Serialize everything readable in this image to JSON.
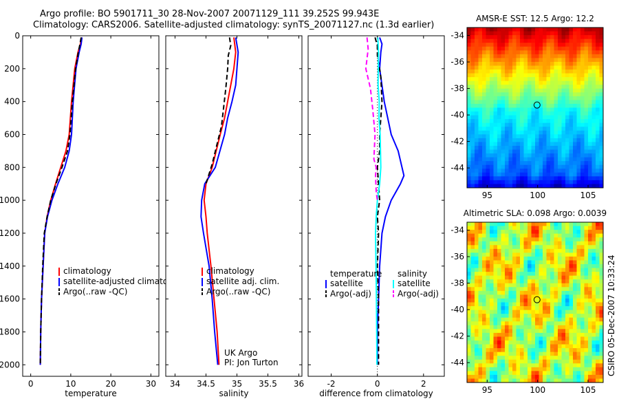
{
  "header": {
    "line1": "Argo profile: BO 5901711_30 28-Nov-2007 20071129_111 39.252S 99.943E",
    "line2": "Climatology: CARS2006. Satellite-adjusted climatology: synTS_20071127.nc (1.3d earlier)"
  },
  "side_note": "CSIRO 05-Dec-2007 10:33:24",
  "colors": {
    "climatology": "#ff0000",
    "satellite": "#0000ff",
    "argo": "#000000",
    "sal_satellite": "#00ffff",
    "sal_argo": "#ff00ff"
  },
  "chart_data": [
    {
      "type": "line",
      "id": "temperature",
      "xlabel": "temperature",
      "ylabel": "",
      "xlim": [
        -2,
        32
      ],
      "ylim": [
        2070,
        0
      ],
      "xticks": [
        0,
        10,
        20,
        30
      ],
      "yticks": [
        0,
        200,
        400,
        600,
        800,
        1000,
        1200,
        1400,
        1600,
        1800,
        2000
      ],
      "legend": [
        "climatology",
        "satellite-adjusted climatology",
        "Argo(..raw -QC)"
      ],
      "series": [
        {
          "name": "climatology",
          "color": "#ff0000",
          "style": "solid",
          "x": [
            12.7,
            12.4,
            11.8,
            11.0,
            10.2,
            9.6,
            8.8,
            7.5,
            6.2,
            5.0,
            4.1,
            3.5,
            3.1,
            2.7,
            2.5,
            2.4
          ],
          "y": [
            10,
            50,
            100,
            200,
            400,
            600,
            700,
            800,
            900,
            1000,
            1100,
            1200,
            1400,
            1600,
            1800,
            2000
          ]
        },
        {
          "name": "satellite-adjusted climatology",
          "color": "#0000ff",
          "style": "solid",
          "x": [
            12.8,
            12.6,
            12.1,
            11.3,
            10.6,
            10.2,
            9.6,
            8.5,
            6.8,
            5.3,
            4.2,
            3.5,
            3.1,
            2.7,
            2.5,
            2.4
          ],
          "y": [
            10,
            50,
            100,
            200,
            400,
            600,
            700,
            800,
            900,
            1000,
            1100,
            1200,
            1400,
            1600,
            1800,
            2000
          ]
        },
        {
          "name": "Argo(..raw -QC)",
          "color": "#000000",
          "style": "dashed",
          "x": [
            12.6,
            12.3,
            11.9,
            11.2,
            10.4,
            9.8,
            9.2,
            7.8,
            6.3,
            5.0,
            4.1,
            3.4,
            3.0,
            2.7,
            2.5,
            2.4
          ],
          "y": [
            10,
            50,
            100,
            200,
            400,
            600,
            700,
            800,
            900,
            1000,
            1100,
            1200,
            1400,
            1600,
            1800,
            2000
          ]
        }
      ]
    },
    {
      "type": "line",
      "id": "salinity",
      "xlabel": "salinity",
      "ylabel": "",
      "xlim": [
        33.85,
        36.05
      ],
      "ylim": [
        2070,
        0
      ],
      "xticks": [
        34,
        34.5,
        35,
        35.5,
        36
      ],
      "yticks": [
        0,
        200,
        400,
        600,
        800,
        1000,
        1200,
        1400,
        1600,
        1800,
        2000
      ],
      "legend": [
        "climatology",
        "satellite adj. clim.",
        "Argo(..raw -QC)"
      ],
      "annotation": [
        "UK Argo",
        "PI: Jon Turton"
      ],
      "series": [
        {
          "name": "climatology",
          "color": "#ff0000",
          "style": "solid",
          "x": [
            34.95,
            34.98,
            34.95,
            34.9,
            34.85,
            34.8,
            34.73,
            34.6,
            34.5,
            34.47,
            34.5,
            34.52,
            34.58,
            34.63,
            34.68,
            34.71
          ],
          "y": [
            10,
            100,
            200,
            300,
            400,
            500,
            600,
            800,
            900,
            1000,
            1100,
            1200,
            1400,
            1600,
            1800,
            2000
          ]
        },
        {
          "name": "satellite adj. clim.",
          "color": "#0000ff",
          "style": "solid",
          "x": [
            34.98,
            35.02,
            35.0,
            34.98,
            34.92,
            34.85,
            34.8,
            34.65,
            34.48,
            34.43,
            34.42,
            34.46,
            34.55,
            34.6,
            34.64,
            34.69
          ],
          "y": [
            10,
            100,
            200,
            300,
            400,
            500,
            600,
            800,
            900,
            1000,
            1100,
            1200,
            1400,
            1600,
            1800,
            2000
          ]
        },
        {
          "name": "Argo(..raw -QC)",
          "color": "#000000",
          "style": "dashed",
          "x": [
            34.88,
            34.9,
            34.86,
            34.85,
            34.82,
            34.79,
            34.75,
            34.6,
            34.5
          ],
          "y": [
            10,
            60,
            120,
            200,
            320,
            420,
            550,
            780,
            900
          ]
        }
      ]
    },
    {
      "type": "line",
      "id": "difference",
      "xlabel": "difference from climatology",
      "ylabel": "",
      "xlim": [
        -3.0,
        2.9
      ],
      "ylim": [
        2070,
        0
      ],
      "xticks": [
        -2,
        0,
        2
      ],
      "yticks": [
        0,
        200,
        400,
        600,
        800,
        1000,
        1200,
        1400,
        1600,
        1800,
        2000
      ],
      "legend_groups": [
        {
          "title": "temperature",
          "items": [
            "satellite",
            "Argo(-adj)"
          ]
        },
        {
          "title": "salinity",
          "items": [
            "satellite",
            "Argo(-adj)"
          ]
        }
      ],
      "series": [
        {
          "name": "temperature satellite",
          "color": "#0000ff",
          "style": "solid",
          "x": [
            0.1,
            0.2,
            0.15,
            0.1,
            0.3,
            0.6,
            0.9,
            1.15,
            1.0,
            0.6,
            0.35,
            0.2,
            0.1,
            0.05,
            0.0,
            0.0
          ],
          "y": [
            10,
            50,
            100,
            200,
            400,
            600,
            700,
            850,
            900,
            1000,
            1100,
            1200,
            1400,
            1600,
            1800,
            2000
          ]
        },
        {
          "name": "temperature Argo(-adj)",
          "color": "#000000",
          "style": "dashed",
          "x": [
            -0.1,
            0.0,
            0.0,
            0.15,
            0.2,
            0.1,
            0.1,
            0.0,
            0.05,
            0.1,
            0.0,
            0.05,
            0.0,
            0.05,
            0.05,
            0.05
          ],
          "y": [
            10,
            60,
            120,
            250,
            400,
            600,
            700,
            800,
            900,
            1000,
            1100,
            1200,
            1400,
            1600,
            1800,
            2000
          ]
        },
        {
          "name": "salinity satellite",
          "color": "#00ffff",
          "style": "solid",
          "x": [
            0.02,
            0.05,
            0.04,
            0.03,
            0.08,
            0.07,
            0.12,
            0.15,
            0.1,
            0.0,
            -0.05,
            -0.08,
            -0.06,
            -0.04,
            -0.03,
            -0.02
          ],
          "y": [
            10,
            100,
            200,
            300,
            400,
            500,
            600,
            800,
            900,
            1000,
            1100,
            1200,
            1400,
            1600,
            1800,
            2000
          ]
        },
        {
          "name": "salinity Argo(-adj)",
          "color": "#ff00ff",
          "style": "dashed",
          "x": [
            -0.45,
            -0.4,
            -0.5,
            -0.3,
            -0.2,
            -0.1,
            -0.15,
            -0.05,
            -0.08,
            -0.05,
            0.0
          ],
          "y": [
            10,
            80,
            200,
            320,
            450,
            600,
            750,
            800,
            850,
            950,
            1000
          ]
        }
      ]
    },
    {
      "type": "heatmap",
      "id": "sst-map",
      "title": "AMSR-E SST: 12.5 Argo: 12.2",
      "xlim": [
        93,
        106.5
      ],
      "ylim": [
        -45.5,
        -33.4
      ],
      "xticks": [
        95,
        100,
        105
      ],
      "yticks": [
        -34,
        -36,
        -38,
        -40,
        -42,
        -44
      ],
      "marker": {
        "lon": 99.943,
        "lat": -39.252
      }
    },
    {
      "type": "heatmap",
      "id": "sla-map",
      "title": "Altimetric SLA: 0.098 Argo: 0.0039",
      "xlim": [
        93,
        106.5
      ],
      "ylim": [
        -45.5,
        -33.4
      ],
      "xticks": [
        95,
        100,
        105
      ],
      "yticks": [
        -34,
        -36,
        -38,
        -40,
        -42,
        -44
      ],
      "marker": {
        "lon": 99.943,
        "lat": -39.252
      }
    }
  ]
}
